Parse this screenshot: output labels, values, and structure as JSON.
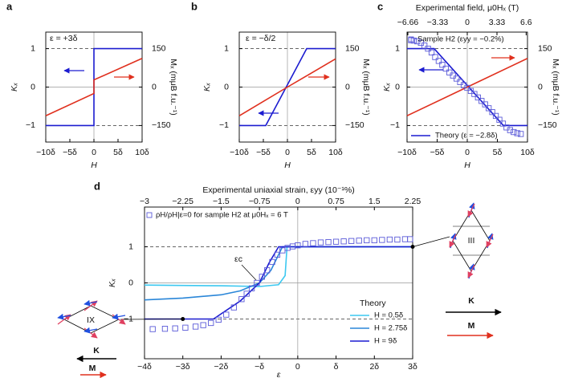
{
  "chart_data": [
    {
      "type": "line",
      "panel": "a",
      "ylabel": "Kₓ",
      "y2label": "Mₓ (mμB f.u.⁻¹)",
      "xlabel": "H",
      "annotation": "ε = +3δ",
      "xlim": [
        -10,
        10
      ],
      "xticks": [
        {
          "value": -10,
          "label": "−10δ"
        },
        {
          "value": -5,
          "label": "−5δ"
        },
        0,
        {
          "value": 5,
          "label": "5δ"
        },
        {
          "value": 10,
          "label": "10δ"
        }
      ],
      "ylim": [
        -1.43,
        1.43
      ],
      "yticks": [
        1,
        0,
        {
          "value": -1,
          "label": "−1"
        }
      ],
      "y2lim": [
        -214.5,
        214.5
      ],
      "y2ticks": [
        150,
        0,
        {
          "value": -150,
          "label": "−150"
        }
      ],
      "grid": true,
      "series": [
        {
          "color": "#1c1cd0",
          "x": [
            -10,
            0,
            0,
            10
          ],
          "values": [
            -1,
            -1,
            1,
            1
          ]
        },
        {
          "color": "#e0301e",
          "axis": "y2",
          "x": [
            -10,
            0,
            0,
            10
          ],
          "values": [
            -112,
            -25,
            28,
            112
          ]
        }
      ]
    },
    {
      "type": "line",
      "panel": "b",
      "ylabel": "Kₓ",
      "y2label": "Mₓ (mμB f.u.⁻¹)",
      "xlabel": "H",
      "annotation": "ε = −δ/2",
      "xlim": [
        -10,
        10
      ],
      "xticks": [
        {
          "value": -10,
          "label": "−10δ"
        },
        {
          "value": -5,
          "label": "−5δ"
        },
        0,
        {
          "value": 5,
          "label": "5δ"
        },
        {
          "value": 10,
          "label": "10δ"
        }
      ],
      "ylim": [
        -1.43,
        1.43
      ],
      "yticks": [
        1,
        0,
        {
          "value": -1,
          "label": "−1"
        }
      ],
      "y2lim": [
        -214.5,
        214.5
      ],
      "y2ticks": [
        150,
        0,
        {
          "value": -150,
          "label": "−150"
        }
      ],
      "grid": true,
      "series": [
        {
          "color": "#1c1cd0",
          "x": [
            -10,
            -4.5,
            4,
            10
          ],
          "values": [
            -1,
            -1,
            1,
            1
          ]
        },
        {
          "color": "#e0301e",
          "axis": "y2",
          "x": [
            -10,
            0,
            10
          ],
          "values": [
            -112,
            0,
            110
          ]
        }
      ]
    },
    {
      "type": "line",
      "panel": "c",
      "ylabel": "Kₓ",
      "y2label": "Mₓ (mμB f.u.⁻¹)",
      "xlabel": "H",
      "x2label": "Experimental field, μ0Hₓ (T)",
      "xlim": [
        -10,
        10
      ],
      "xticks": [
        {
          "value": -10,
          "label": "−10δ"
        },
        {
          "value": -5,
          "label": "−5δ"
        },
        0,
        {
          "value": 5,
          "label": "5δ"
        },
        {
          "value": 10,
          "label": "10δ"
        }
      ],
      "x2lim": [
        -6.75,
        6.75
      ],
      "x2ticks": [
        {
          "value": -6.66,
          "label": "−6.66"
        },
        {
          "value": -3.33,
          "label": "−3.33"
        },
        0,
        3.33,
        6.6
      ],
      "ylim": [
        -1.43,
        1.43
      ],
      "yticks": [
        1,
        0,
        {
          "value": -1,
          "label": "−1"
        }
      ],
      "y2lim": [
        -214.5,
        214.5
      ],
      "y2ticks": [
        150,
        0,
        {
          "value": -150,
          "label": "−150"
        }
      ],
      "grid": true,
      "series": [
        {
          "name": "Theory (ε = −2.8δ)",
          "color": "#1c1cd0",
          "x": [
            -10,
            -5.5,
            6,
            10
          ],
          "values": [
            1,
            1,
            -1,
            -1
          ]
        },
        {
          "color": "#e0301e",
          "axis": "y2",
          "x": [
            -10,
            0,
            10
          ],
          "values": [
            -112,
            0,
            112
          ]
        },
        {
          "name": "Sample H2 (εyy = −0.2%)",
          "color": "#5a5ad8",
          "marker": "square",
          "xaxis": "x2",
          "x": [
            -6.3,
            -6,
            -5.6,
            -5.2,
            -4.8,
            -4.4,
            -4,
            -3.6,
            -3.2,
            -2.8,
            -2.4,
            -2,
            -1.6,
            -1.2,
            -0.8,
            -0.4,
            0,
            0.4,
            0.8,
            1.2,
            1.6,
            2,
            2.4,
            2.8,
            3.2,
            3.6,
            4,
            4.4,
            4.8,
            5.2,
            5.6,
            6
          ],
          "values": [
            1.22,
            1.21,
            1.19,
            1.15,
            1.08,
            1.0,
            0.9,
            0.78,
            0.68,
            0.58,
            0.48,
            0.38,
            0.3,
            0.22,
            0.13,
            0.05,
            -0.02,
            -0.1,
            -0.18,
            -0.27,
            -0.36,
            -0.45,
            -0.55,
            -0.65,
            -0.75,
            -0.85,
            -0.95,
            -1.05,
            -1.12,
            -1.17,
            -1.2,
            -1.22
          ]
        }
      ]
    },
    {
      "type": "line",
      "panel": "d",
      "ylabel": "Kₓ",
      "xlabel": "ε",
      "x2label": "Experimental uniaxial strain, εyy (10⁻¹%)",
      "annotation": "εc",
      "legend_title": "Theory",
      "xlim": [
        -4,
        3
      ],
      "xticks": [
        {
          "value": -4,
          "label": "−4δ"
        },
        {
          "value": -3,
          "label": "−3δ"
        },
        {
          "value": -2,
          "label": "−2δ"
        },
        {
          "value": -1,
          "label": "−δ"
        },
        0,
        {
          "value": 1,
          "label": "δ"
        },
        {
          "value": 2,
          "label": "2δ"
        },
        {
          "value": 3,
          "label": "3δ"
        }
      ],
      "x2lim": [
        -3,
        2.25
      ],
      "x2ticks": [
        {
          "value": -3,
          "label": "−3"
        },
        {
          "value": -2.25,
          "label": "−2.25"
        },
        {
          "value": -1.5,
          "label": "−1.5"
        },
        {
          "value": -0.75,
          "label": "−0.75"
        },
        0,
        0.75,
        1.5,
        2.25
      ],
      "ylim": [
        -2.1,
        2.1
      ],
      "yticks": [
        1,
        0,
        {
          "value": -1,
          "label": "−1"
        }
      ],
      "grid": true,
      "insets": [
        {
          "label": "IX",
          "k": "K",
          "m": "M"
        },
        {
          "label": "III",
          "k": "K",
          "m": "M"
        }
      ],
      "series": [
        {
          "name": "H = 0.5δ",
          "color": "#3cc8f0",
          "x": [
            -4,
            -3,
            -2,
            -1,
            -0.5,
            -0.33,
            -0.28,
            3
          ],
          "values": [
            -0.06,
            -0.07,
            -0.08,
            -0.1,
            -0.05,
            0.2,
            1,
            1
          ]
        },
        {
          "name": "H = 2.75δ",
          "color": "#2a86d8",
          "x": [
            -4,
            -3,
            -2,
            -1.5,
            -1,
            -0.7,
            -0.4,
            3
          ],
          "values": [
            -0.47,
            -0.42,
            -0.33,
            -0.22,
            0,
            0.35,
            1,
            1
          ]
        },
        {
          "name": "H = 9δ",
          "color": "#1c1cd0",
          "x": [
            -4,
            -2.2,
            -1.5,
            -1,
            -0.75,
            -0.5,
            3
          ],
          "values": [
            -1,
            -1,
            -0.5,
            0,
            0.55,
            1,
            1
          ]
        },
        {
          "name": "ρH/ρH|ε=0 for sample H2 at μ0Hₓ = 6 T",
          "color": "#5a5ad8",
          "marker": "square",
          "xaxis": "x2",
          "x": [
            -2.84,
            -2.6,
            -2.4,
            -2.2,
            -2.0,
            -1.85,
            -1.7,
            -1.55,
            -1.4,
            -1.25,
            -1.1,
            -1.0,
            -0.9,
            -0.8,
            -0.7,
            -0.6,
            -0.5,
            -0.4,
            -0.3,
            -0.2,
            -0.1,
            0,
            0.15,
            0.3,
            0.45,
            0.6,
            0.75,
            0.9,
            1.05,
            1.2,
            1.35,
            1.5,
            1.65,
            1.8,
            1.95,
            2.1,
            2.2
          ],
          "values": [
            -1.28,
            -1.27,
            -1.26,
            -1.24,
            -1.21,
            -1.17,
            -1.11,
            -1.02,
            -0.88,
            -0.68,
            -0.45,
            -0.3,
            -0.15,
            0.0,
            0.17,
            0.35,
            0.58,
            0.78,
            0.9,
            0.97,
            1.01,
            1.04,
            1.08,
            1.1,
            1.12,
            1.13,
            1.14,
            1.15,
            1.16,
            1.17,
            1.18,
            1.18,
            1.19,
            1.2,
            1.2,
            1.21,
            1.21
          ]
        }
      ]
    }
  ]
}
